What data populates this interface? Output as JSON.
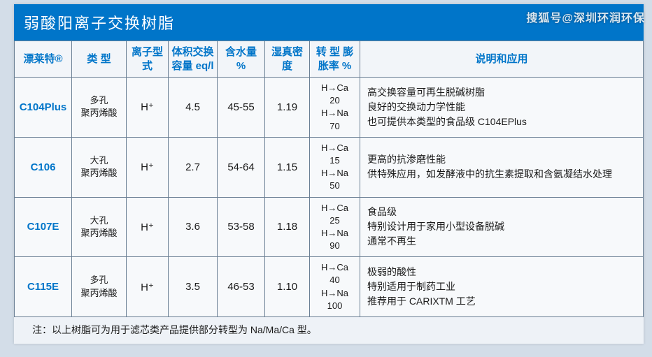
{
  "watermark": "搜狐号@深圳环润环保",
  "banner_title": "弱酸阳离子交换树脂",
  "columns": [
    "漂莱特®",
    "类 型",
    "离子型式",
    "体积交换容量 eq/l",
    "含水量 %",
    "湿真密度",
    "转 型 膨胀率 %",
    "说明和应用"
  ],
  "rows": [
    {
      "model": "C104Plus",
      "type": "多孔\n聚丙烯酸",
      "ion": "H⁺",
      "cap": "4.5",
      "water": "45-55",
      "density": "1.19",
      "conv": "H→Ca\n20\nH→Na\n70",
      "desc": "高交换容量可再生脱碱树脂\n良好的交换动力学性能\n也可提供本类型的食品级 C104EPlus"
    },
    {
      "model": "C106",
      "type": "大孔\n聚丙烯酸",
      "ion": "H⁺",
      "cap": "2.7",
      "water": "54-64",
      "density": "1.15",
      "conv": "H→Ca\n15\nH→Na\n50",
      "desc": "更高的抗渗磨性能\n供特殊应用，如发酵液中的抗生素提取和含氨凝结水处理"
    },
    {
      "model": "C107E",
      "type": "大孔\n聚丙烯酸",
      "ion": "H⁺",
      "cap": "3.6",
      "water": "53-58",
      "density": "1.18",
      "conv": "H→Ca\n25\nH→Na\n90",
      "desc": "食品级\n特别设计用于家用小型设备脱碱\n通常不再生"
    },
    {
      "model": "C115E",
      "type": "多孔\n聚丙烯酸",
      "ion": "H⁺",
      "cap": "3.5",
      "water": "46-53",
      "density": "1.10",
      "conv": "H→Ca\n40\nH→Na\n100",
      "desc": "极弱的酸性\n特别适用于制药工业\n推荐用于 CARIXTM 工艺"
    }
  ],
  "footnote": "注：以上树脂可为用于滤芯类产品提供部分转型为 Na/Ma/Ca 型。",
  "colors": {
    "banner_bg": "#0075c9",
    "border": "#6a7f94",
    "model_text": "#0075c9",
    "page_bg": "#eef2f7",
    "body_bg": "#d3dde8"
  }
}
